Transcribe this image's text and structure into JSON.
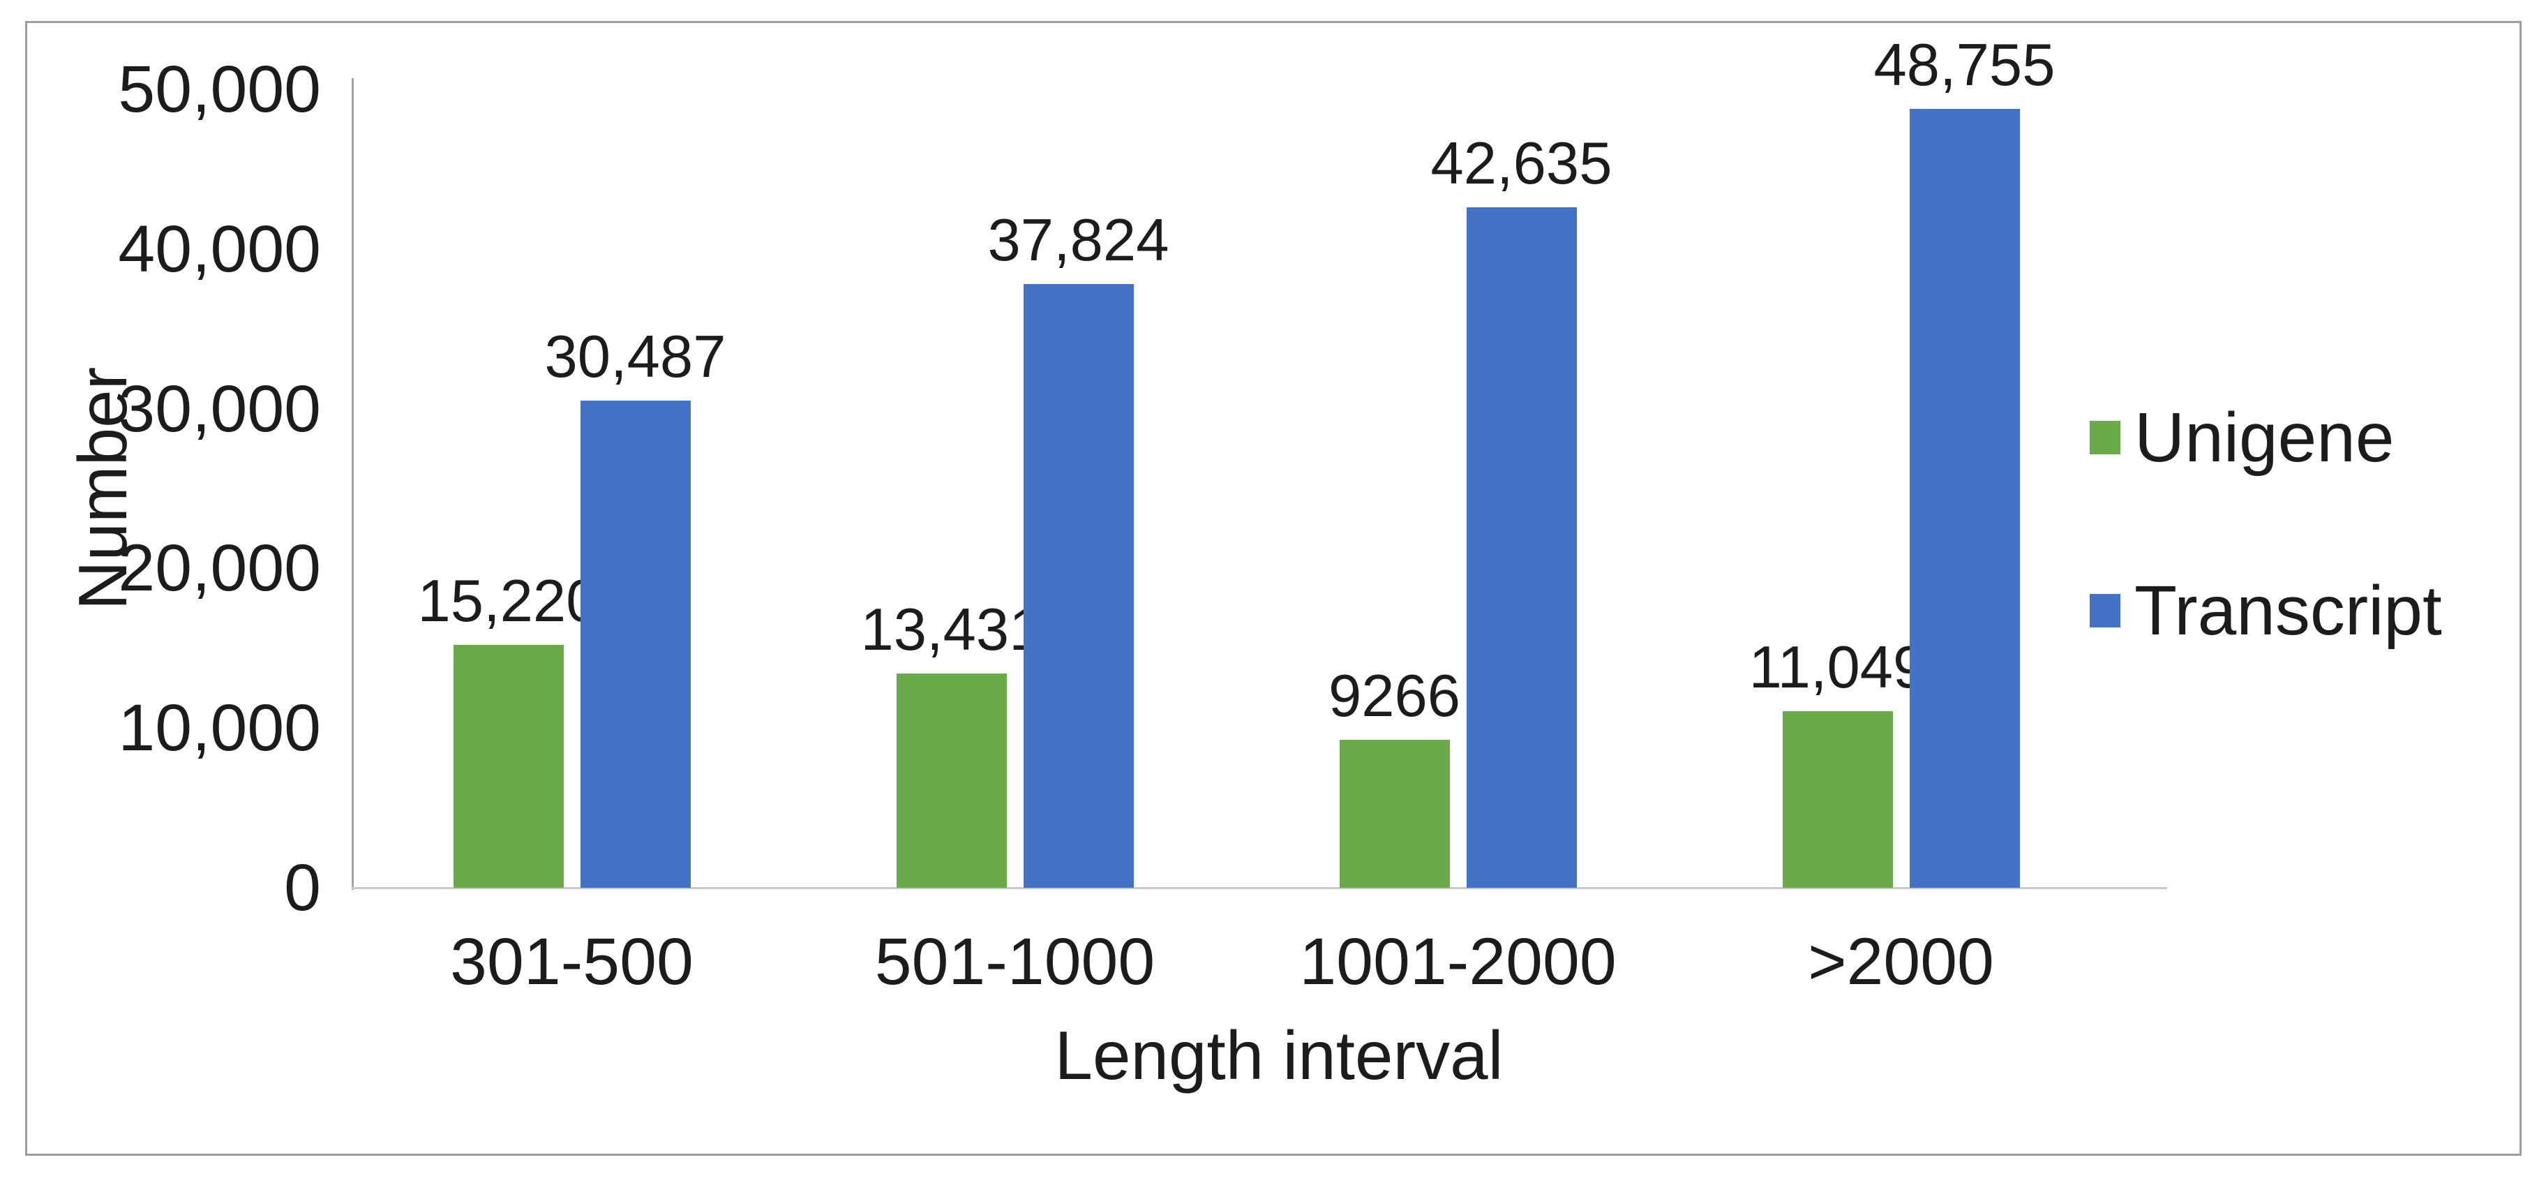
{
  "figure": {
    "background_color": "#ffffff",
    "border_color": "#9c9c9c"
  },
  "chart_data": {
    "type": "bar",
    "title": "",
    "xlabel": "Length interval",
    "ylabel": "Number",
    "categories": [
      "301-500",
      "501-1000",
      "1001-2000",
      ">2000"
    ],
    "series": [
      {
        "name": "Unigene",
        "color": "#6aaa4b",
        "values": [
          15220,
          13431,
          9266,
          11049
        ],
        "value_labels": [
          "15,220",
          "13,431",
          "9266",
          "11,049"
        ]
      },
      {
        "name": "Transcript",
        "color": "#4472c4",
        "values": [
          30487,
          37824,
          42635,
          48755
        ],
        "value_labels": [
          "30,487",
          "37,824",
          "42,635",
          "48,755"
        ]
      }
    ],
    "y_axis": {
      "min": 0,
      "max": 50000,
      "tick_interval": 10000,
      "tick_labels": [
        "0",
        "10,000",
        "20,000",
        "30,000",
        "40,000",
        "50,000"
      ]
    },
    "grid": false,
    "legend_position": "right"
  },
  "legend": {
    "items": [
      {
        "label": "Unigene",
        "color": "#6aaa4b"
      },
      {
        "label": "Transcript",
        "color": "#4472c4"
      }
    ]
  }
}
